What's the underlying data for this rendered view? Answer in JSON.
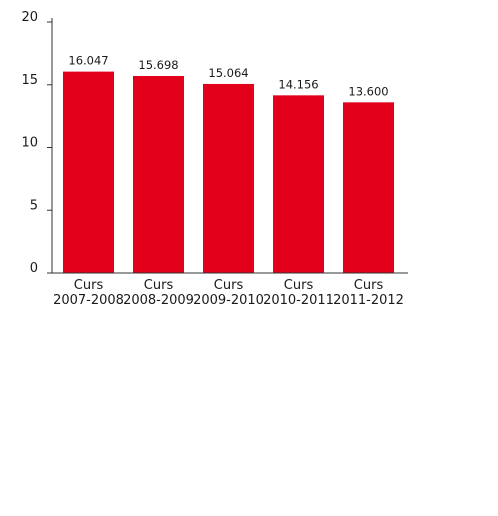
{
  "chart_data": {
    "type": "bar",
    "categories": [
      [
        "Curs",
        "2007-2008"
      ],
      [
        "Curs",
        "2008-2009"
      ],
      [
        "Curs",
        "2009-2010"
      ],
      [
        "Curs",
        "2010-2011"
      ],
      [
        "Curs",
        "2011-2012"
      ]
    ],
    "values": [
      16.047,
      15.698,
      15.064,
      14.156,
      13.6
    ],
    "value_labels": [
      "16.047",
      "15.698",
      "15.064",
      "14.156",
      "13.600"
    ],
    "yticks": [
      0,
      5,
      10,
      15,
      20
    ],
    "ylim": [
      0,
      20
    ],
    "grid": false,
    "bar_color": "#e2001a",
    "axis_color": "#333333"
  }
}
